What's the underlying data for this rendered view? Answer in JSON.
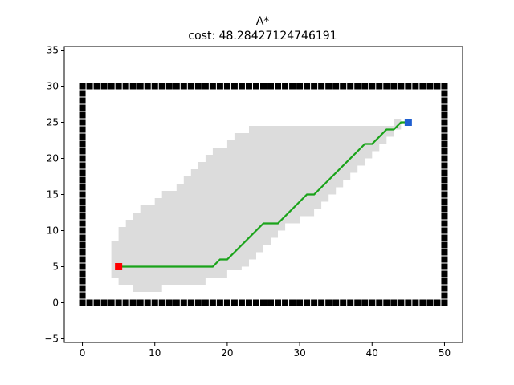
{
  "chart_data": {
    "type": "line",
    "title": "A*",
    "subtitle": "cost: 48.28427124746191",
    "xlabel": "",
    "ylabel": "",
    "xlim": [
      -2.5,
      52.5
    ],
    "ylim": [
      -5.5,
      35.5
    ],
    "x_ticks": [
      0,
      10,
      20,
      30,
      40,
      50
    ],
    "y_ticks": [
      -5,
      0,
      5,
      10,
      15,
      20,
      25,
      30,
      35
    ],
    "grid": false,
    "colors": {
      "obstacle": "#000000",
      "explored": "#dcdcdc",
      "path": "#1aa31a",
      "start": "#ff0000",
      "goal": "#1f5fd0"
    },
    "obstacle_boundary": {
      "x_range": [
        0,
        50
      ],
      "y_range": [
        0,
        30
      ]
    },
    "explored_region": [
      [
        4,
        3.5
      ],
      [
        4,
        8.5
      ],
      [
        5,
        8.5
      ],
      [
        5,
        10.5
      ],
      [
        6,
        10.5
      ],
      [
        6,
        11.5
      ],
      [
        7,
        11.5
      ],
      [
        7,
        12.5
      ],
      [
        8,
        12.5
      ],
      [
        8,
        13.5
      ],
      [
        10,
        13.5
      ],
      [
        10,
        14.5
      ],
      [
        11,
        14.5
      ],
      [
        11,
        15.5
      ],
      [
        13,
        15.5
      ],
      [
        13,
        16.5
      ],
      [
        14,
        16.5
      ],
      [
        14,
        17.5
      ],
      [
        15,
        17.5
      ],
      [
        15,
        18.5
      ],
      [
        16,
        18.5
      ],
      [
        16,
        19.5
      ],
      [
        17,
        19.5
      ],
      [
        17,
        20.5
      ],
      [
        18,
        20.5
      ],
      [
        18,
        21.5
      ],
      [
        20,
        21.5
      ],
      [
        20,
        22.5
      ],
      [
        21,
        22.5
      ],
      [
        21,
        23.5
      ],
      [
        23,
        23.5
      ],
      [
        23,
        24.5
      ],
      [
        43,
        24.5
      ],
      [
        43,
        25.5
      ],
      [
        44,
        25.5
      ],
      [
        44,
        24
      ],
      [
        43,
        24
      ],
      [
        43,
        23
      ],
      [
        42,
        23
      ],
      [
        42,
        22
      ],
      [
        41,
        22
      ],
      [
        41,
        21
      ],
      [
        40,
        21
      ],
      [
        40,
        20
      ],
      [
        39,
        20
      ],
      [
        39,
        19
      ],
      [
        38,
        19
      ],
      [
        38,
        18
      ],
      [
        37,
        18
      ],
      [
        37,
        17
      ],
      [
        36,
        17
      ],
      [
        36,
        16
      ],
      [
        35,
        16
      ],
      [
        35,
        15
      ],
      [
        34,
        15
      ],
      [
        34,
        14
      ],
      [
        33,
        14
      ],
      [
        33,
        13
      ],
      [
        32,
        13
      ],
      [
        32,
        12
      ],
      [
        30,
        12
      ],
      [
        30,
        11
      ],
      [
        28,
        11
      ],
      [
        28,
        10
      ],
      [
        27,
        10
      ],
      [
        27,
        9
      ],
      [
        26,
        9
      ],
      [
        26,
        8
      ],
      [
        25,
        8
      ],
      [
        25,
        7
      ],
      [
        24,
        7
      ],
      [
        24,
        6
      ],
      [
        23,
        6
      ],
      [
        23,
        5
      ],
      [
        22,
        5
      ],
      [
        22,
        4.5
      ],
      [
        20,
        4.5
      ],
      [
        20,
        3.5
      ],
      [
        17,
        3.5
      ],
      [
        17,
        2.5
      ],
      [
        16,
        2.5
      ],
      [
        16,
        2.5
      ],
      [
        11,
        2.5
      ],
      [
        11,
        1.5
      ],
      [
        10,
        1.5
      ],
      [
        10,
        1.5
      ],
      [
        7,
        1.5
      ],
      [
        7,
        2.5
      ],
      [
        5,
        2.5
      ],
      [
        5,
        3.5
      ]
    ],
    "path": {
      "x": [
        5,
        18,
        19,
        20,
        25,
        27,
        31,
        32,
        39,
        40,
        42,
        43,
        44,
        45
      ],
      "y": [
        5,
        5,
        6,
        6,
        11,
        11,
        15,
        15,
        22,
        22,
        24,
        24,
        25,
        25
      ]
    },
    "start": {
      "x": 5,
      "y": 5
    },
    "goal": {
      "x": 45,
      "y": 25
    }
  }
}
